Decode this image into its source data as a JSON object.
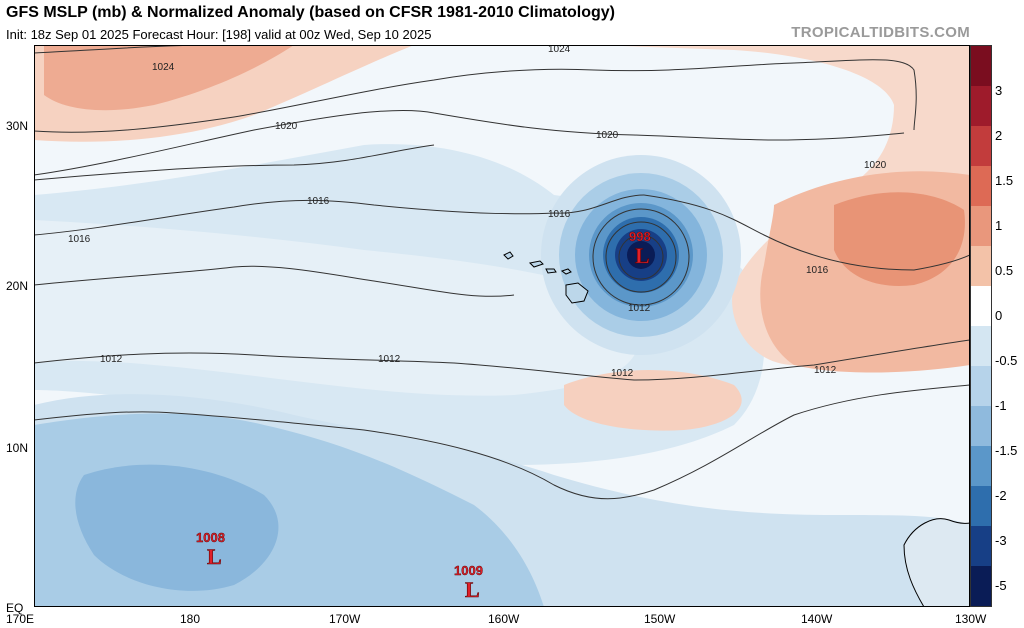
{
  "header": {
    "title": "GFS MSLP (mb) & Normalized Anomaly (based on CFSR 1981-2010 Climatology)",
    "subtitle": "Init: 18z Sep 01 2025   Forecast Hour: [198]   valid at 00z Wed, Sep 10 2025",
    "brand": "TROPICALTIDBITS.COM"
  },
  "axes": {
    "x_labels": [
      "170E",
      "180",
      "170W",
      "160W",
      "150W",
      "140W",
      "130W"
    ],
    "y_labels": [
      "30N",
      "20N",
      "10N",
      "EQ"
    ]
  },
  "isobar_labels": [
    "1024",
    "1024",
    "1020",
    "1020",
    "1020",
    "1016",
    "1016",
    "1016",
    "1016",
    "1012",
    "1012",
    "1012",
    "1012",
    "1012"
  ],
  "pressure_centers": [
    {
      "label": "L",
      "pressure": "998"
    },
    {
      "label": "L",
      "pressure": "1008"
    },
    {
      "label": "L",
      "pressure": "1009"
    }
  ],
  "colorbar": {
    "labels": [
      "3",
      "2",
      "1.5",
      "1",
      "0.5",
      "0",
      "-0.5",
      "-1",
      "-1.5",
      "-2",
      "-3",
      "-5"
    ],
    "colors": [
      "#7a0d1f",
      "#9e1b2b",
      "#c23c3c",
      "#dd6a55",
      "#e9977c",
      "#f3c2a8",
      "#ffffff",
      "#d4e6f2",
      "#b6d3ea",
      "#8fbadd",
      "#5b97c9",
      "#2e6ead",
      "#173f86",
      "#0a1c56"
    ]
  }
}
